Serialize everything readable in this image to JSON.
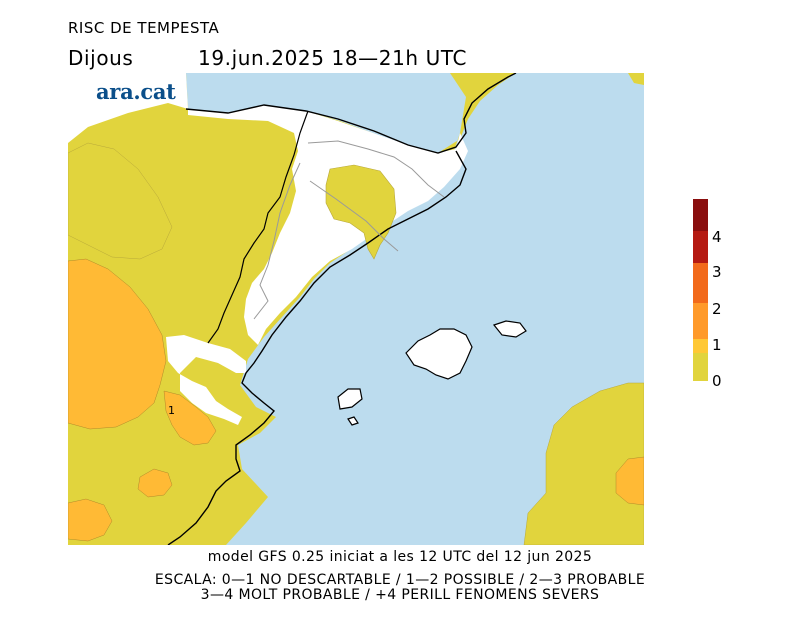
{
  "header": {
    "title": "RISC DE TEMPESTA",
    "day": "Dijous",
    "datetime": "19.jun.2025 18—21h UTC"
  },
  "logo": {
    "text": "ara.cat",
    "color": "#0b4f8a"
  },
  "map": {
    "colors": {
      "sea": "#bcdcee",
      "land_risk0": "#ffffff",
      "risk0_1": "#e1d43d",
      "risk1_2": "#ffba35",
      "border": "#000000",
      "province_line": "#9a9a9a"
    },
    "contour_label": "1"
  },
  "legend": {
    "levels": [
      {
        "label": "0",
        "color": "#e1d43d"
      },
      {
        "label": "1",
        "color": "#ffc835"
      },
      {
        "label": "2",
        "color": "#ff9a2a"
      },
      {
        "label": "3",
        "color": "#f26a1b"
      },
      {
        "label": "4",
        "color": "#b51a12"
      }
    ],
    "top_color": "#8a0e0e"
  },
  "footer": {
    "model_line": "model GFS 0.25 iniciat a les 12 UTC del 12 jun 2025",
    "scale_line1": "ESCALA: 0—1 NO DESCARTABLE / 1—2 POSSIBLE / 2—3 PROBABLE",
    "scale_line2": "3—4 MOLT PROBABLE / +4 PERILL FENOMENS SEVERS"
  }
}
